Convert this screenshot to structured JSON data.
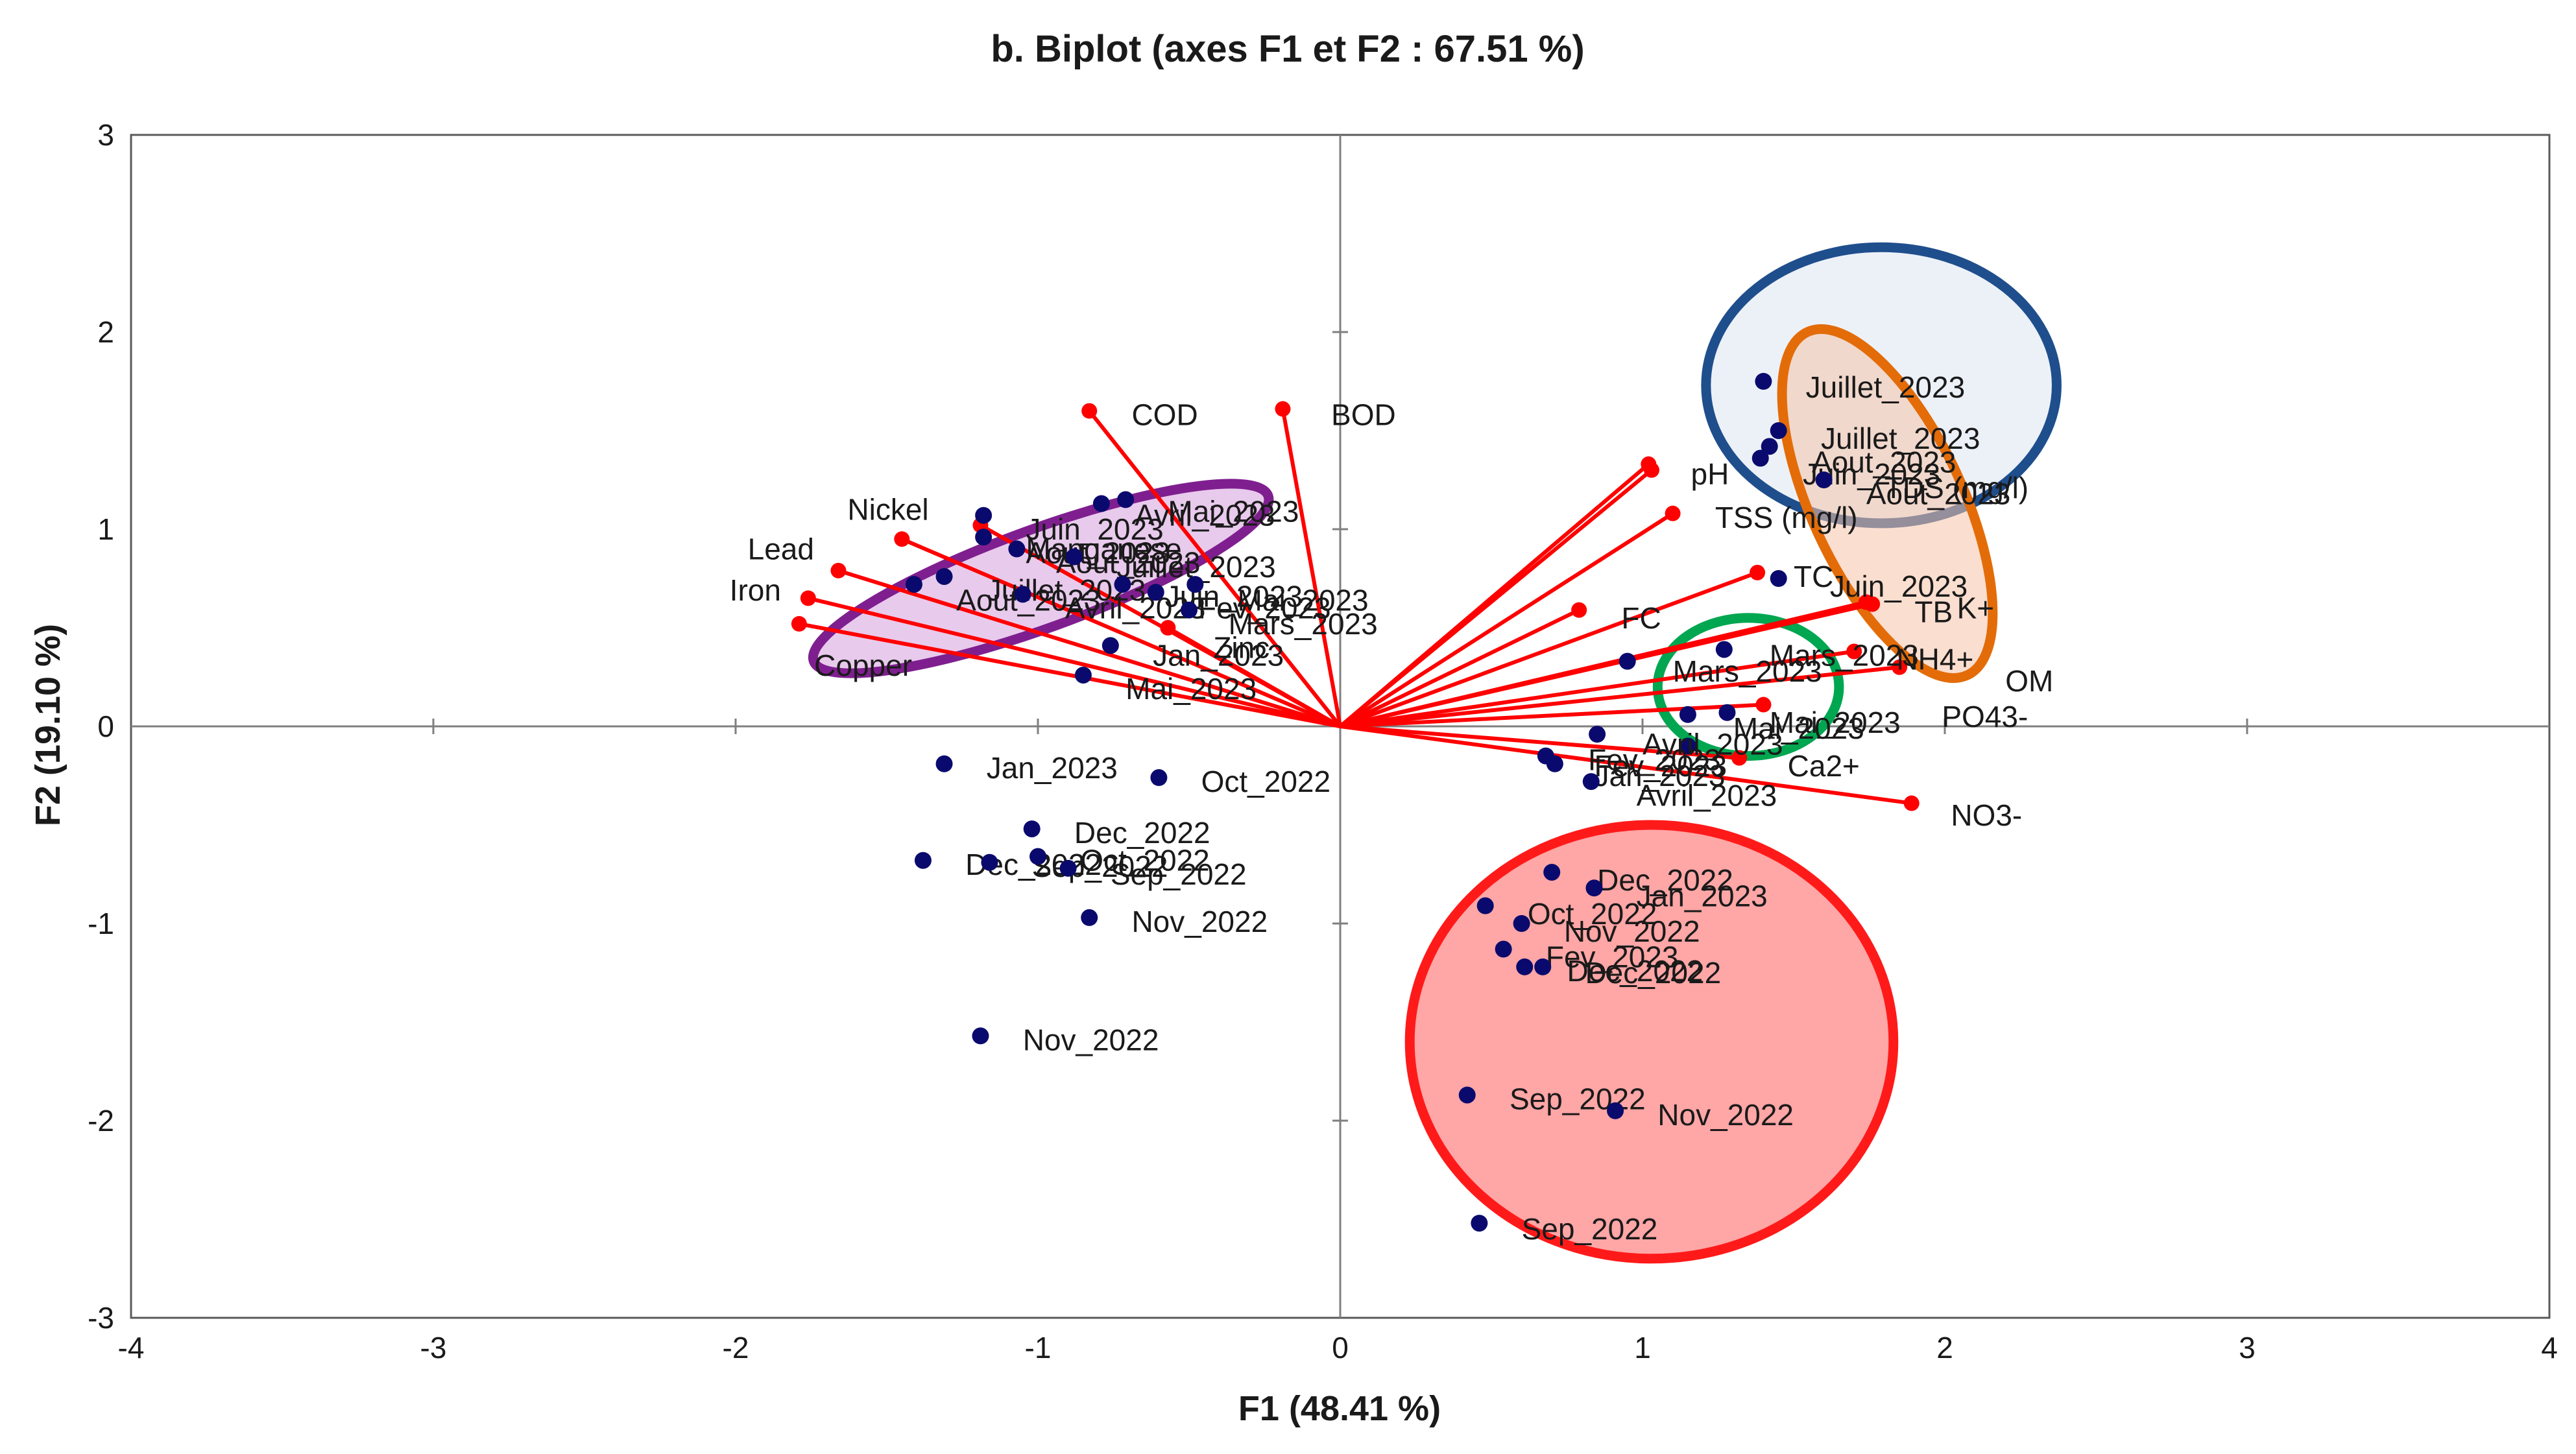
{
  "chart_data": {
    "type": "scatter",
    "title": "b. Biplot (axes F1 et F2 : 67.51 %)",
    "xlabel": "F1 (48.41 %)",
    "ylabel": "F2 (19.10 %)",
    "xlim": [
      -4,
      4
    ],
    "ylim": [
      -3,
      3
    ],
    "xticks": [
      "-4",
      "-3",
      "-2",
      "-1",
      "0",
      "1",
      "2",
      "3",
      "4"
    ],
    "yticks": [
      "-3",
      "-2",
      "-1",
      "0",
      "1",
      "2",
      "3"
    ],
    "colors": {
      "observation": "#0a0a6e",
      "variable": "#ff0000",
      "axis": "#7f7f7f",
      "frame": "#5a5a5a"
    },
    "variables": [
      {
        "name": "COD",
        "x": -0.83,
        "y": 1.6
      },
      {
        "name": "BOD",
        "x": -0.19,
        "y": 1.61
      },
      {
        "name": "Nickel",
        "x": -1.45,
        "y": 0.95
      },
      {
        "name": "Manganese",
        "x": -1.19,
        "y": 1.02
      },
      {
        "name": "Lead",
        "x": -1.66,
        "y": 0.79
      },
      {
        "name": "Iron",
        "x": -1.76,
        "y": 0.65
      },
      {
        "name": "Copper",
        "x": -1.79,
        "y": 0.52
      },
      {
        "name": "Zinc",
        "x": -0.57,
        "y": 0.5
      },
      {
        "name": "pH",
        "x": 1.03,
        "y": 1.3
      },
      {
        "name": "TDS (mg/l)",
        "x": 1.02,
        "y": 1.33
      },
      {
        "name": "TSS (mg/l)",
        "x": 1.1,
        "y": 1.08
      },
      {
        "name": "FC",
        "x": 0.79,
        "y": 0.59
      },
      {
        "name": "TC",
        "x": 1.38,
        "y": 0.78
      },
      {
        "name": "TB",
        "x": 1.76,
        "y": 0.62
      },
      {
        "name": "K+",
        "x": 1.74,
        "y": 0.63
      },
      {
        "name": "NH4+",
        "x": 1.7,
        "y": 0.38
      },
      {
        "name": "OM",
        "x": 1.85,
        "y": 0.3
      },
      {
        "name": "PO43-",
        "x": 1.4,
        "y": 0.11
      },
      {
        "name": "Ca2+",
        "x": 1.32,
        "y": -0.16
      },
      {
        "name": "NO3-",
        "x": 1.89,
        "y": -0.39
      }
    ],
    "variable_labels": [
      {
        "name": "COD",
        "lx": -0.69,
        "ly": 1.58
      },
      {
        "name": "BOD",
        "lx": -0.03,
        "ly": 1.58
      },
      {
        "name": "Nickel",
        "lx": -1.63,
        "ly": 1.1
      },
      {
        "name": "Manganese",
        "lx": -1.04,
        "ly": 0.9
      },
      {
        "name": "Lead",
        "lx": -1.96,
        "ly": 0.9
      },
      {
        "name": "Iron",
        "lx": -2.02,
        "ly": 0.69
      },
      {
        "name": "Copper",
        "lx": -1.74,
        "ly": 0.31
      },
      {
        "name": "Zinc",
        "lx": -0.42,
        "ly": 0.4
      },
      {
        "name": "pH",
        "lx": 1.16,
        "ly": 1.28
      },
      {
        "name": "TDS (mg/l)",
        "lx": 1.8,
        "ly": 1.21
      },
      {
        "name": "TSS (mg/l)",
        "lx": 1.24,
        "ly": 1.06
      },
      {
        "name": "FC",
        "lx": 0.93,
        "ly": 0.55
      },
      {
        "name": "TC",
        "lx": 1.5,
        "ly": 0.76
      },
      {
        "name": "TB",
        "lx": 1.9,
        "ly": 0.58
      },
      {
        "name": "K+",
        "lx": 2.04,
        "ly": 0.6
      },
      {
        "name": "NH4+",
        "lx": 1.84,
        "ly": 0.34
      },
      {
        "name": "OM",
        "lx": 2.2,
        "ly": 0.23
      },
      {
        "name": "PO43-",
        "lx": 1.99,
        "ly": 0.05
      },
      {
        "name": "Ca2+",
        "lx": 1.48,
        "ly": -0.2
      },
      {
        "name": "NO3-",
        "lx": 2.02,
        "ly": -0.45
      }
    ],
    "observations": [
      {
        "label": "Juillet_2023",
        "x": 1.4,
        "y": 1.75,
        "lx": 1.54,
        "ly": 1.72
      },
      {
        "label": "Juillet_2023",
        "x": 1.45,
        "y": 1.5,
        "lx": 1.59,
        "ly": 1.46
      },
      {
        "label": "Aout_2023",
        "x": 1.42,
        "y": 1.42,
        "lx": 1.56,
        "ly": 1.34
      },
      {
        "label": "Juin_2023",
        "x": 1.39,
        "y": 1.36,
        "lx": 1.53,
        "ly": 1.28
      },
      {
        "label": "Aout_2023",
        "x": 1.6,
        "y": 1.25,
        "lx": 1.74,
        "ly": 1.18
      },
      {
        "label": "Juin_2023",
        "x": 1.45,
        "y": 0.75,
        "lx": 1.62,
        "ly": 0.71
      },
      {
        "label": "Mars_2023",
        "x": 1.27,
        "y": 0.39,
        "lx": 1.42,
        "ly": 0.36
      },
      {
        "label": "Mars_2023",
        "x": 0.95,
        "y": 0.33,
        "lx": 1.1,
        "ly": 0.28
      },
      {
        "label": "Mai_2023",
        "x": 1.28,
        "y": 0.07,
        "lx": 1.42,
        "ly": 0.02
      },
      {
        "label": "Mai_2023",
        "x": 1.15,
        "y": 0.06,
        "lx": 1.3,
        "ly": -0.01
      },
      {
        "label": "Avril_2023",
        "x": 1.15,
        "y": -0.1,
        "lx": 1.0,
        "ly": -0.09
      },
      {
        "label": "Fev_2023",
        "x": 0.85,
        "y": -0.04,
        "lx": 0.82,
        "ly": -0.17
      },
      {
        "label": "Fev_2023",
        "x": 0.68,
        "y": -0.15,
        "lx": 0.84,
        "ly": -0.2
      },
      {
        "label": "Jan_2023",
        "x": 0.71,
        "y": -0.19,
        "lx": 0.84,
        "ly": -0.25
      },
      {
        "label": "Avril_2023",
        "x": 0.83,
        "y": -0.28,
        "lx": 0.98,
        "ly": -0.35
      },
      {
        "label": "Mai_2023",
        "x": -0.71,
        "y": 1.15,
        "lx": -0.57,
        "ly": 1.09
      },
      {
        "label": "Avril_2023",
        "x": -0.79,
        "y": 1.13,
        "lx": -0.68,
        "ly": 1.07
      },
      {
        "label": "Juin_2023",
        "x": -1.18,
        "y": 1.07,
        "lx": -1.04,
        "ly": 1.0
      },
      {
        "label": "Aout_2023",
        "x": -1.18,
        "y": 0.96,
        "lx": -1.04,
        "ly": 0.88
      },
      {
        "label": "Aout_2023",
        "x": -1.07,
        "y": 0.9,
        "lx": -0.94,
        "ly": 0.83
      },
      {
        "label": "Juillet_2023",
        "x": -0.88,
        "y": 0.86,
        "lx": -0.74,
        "ly": 0.81
      },
      {
        "label": "Juillet_2023",
        "x": -1.31,
        "y": 0.76,
        "lx": -1.17,
        "ly": 0.69
      },
      {
        "label": "Aout_2023",
        "x": -1.41,
        "y": 0.72,
        "lx": -1.27,
        "ly": 0.64
      },
      {
        "label": "Juin_2023",
        "x": -0.72,
        "y": 0.72,
        "lx": -0.58,
        "ly": 0.66
      },
      {
        "label": "Mai_2023",
        "x": -0.48,
        "y": 0.72,
        "lx": -0.34,
        "ly": 0.64
      },
      {
        "label": "Avril_2023",
        "x": -1.05,
        "y": 0.67,
        "lx": -0.91,
        "ly": 0.6
      },
      {
        "label": "Fev_2023",
        "x": -0.61,
        "y": 0.68,
        "lx": -0.47,
        "ly": 0.6
      },
      {
        "label": "Mars_2023",
        "x": -0.5,
        "y": 0.59,
        "lx": -0.37,
        "ly": 0.52
      },
      {
        "label": "Jan_2023",
        "x": -0.76,
        "y": 0.41,
        "lx": -0.62,
        "ly": 0.36
      },
      {
        "label": "Mai_2023",
        "x": -0.85,
        "y": 0.26,
        "lx": -0.71,
        "ly": 0.19
      },
      {
        "label": "Jan_2023",
        "x": -1.31,
        "y": -0.19,
        "lx": -1.17,
        "ly": -0.21
      },
      {
        "label": "Oct_2022",
        "x": -0.6,
        "y": -0.26,
        "lx": -0.46,
        "ly": -0.28
      },
      {
        "label": "Dec_2022",
        "x": -1.02,
        "y": -0.52,
        "lx": -0.88,
        "ly": -0.54
      },
      {
        "label": "Dec_2022",
        "x": -1.38,
        "y": -0.68,
        "lx": -1.24,
        "ly": -0.7
      },
      {
        "label": "Sep_2022",
        "x": -1.16,
        "y": -0.69,
        "lx": -1.02,
        "ly": -0.71
      },
      {
        "label": "Oct_2022",
        "x": -1.0,
        "y": -0.66,
        "lx": -0.86,
        "ly": -0.68
      },
      {
        "label": "Sep_2022",
        "x": -0.9,
        "y": -0.72,
        "lx": -0.76,
        "ly": -0.75
      },
      {
        "label": "Nov_2022",
        "x": -0.83,
        "y": -0.97,
        "lx": -0.69,
        "ly": -0.99
      },
      {
        "label": "Nov_2022",
        "x": -1.19,
        "y": -1.57,
        "lx": -1.05,
        "ly": -1.59
      },
      {
        "label": "Dec_2022",
        "x": 0.7,
        "y": -0.74,
        "lx": 0.85,
        "ly": -0.78
      },
      {
        "label": "Jan_2023",
        "x": 0.84,
        "y": -0.82,
        "lx": 0.98,
        "ly": -0.86
      },
      {
        "label": "Oct_2022",
        "x": 0.48,
        "y": -0.91,
        "lx": 0.62,
        "ly": -0.95
      },
      {
        "label": "Nov_2022",
        "x": 0.6,
        "y": -1.0,
        "lx": 0.74,
        "ly": -1.04
      },
      {
        "label": "Fev_2023",
        "x": 0.54,
        "y": -1.13,
        "lx": 0.68,
        "ly": -1.17
      },
      {
        "label": "Dec_2022",
        "x": 0.61,
        "y": -1.22,
        "lx": 0.75,
        "ly": -1.24
      },
      {
        "label": "Dec_2022",
        "x": 0.67,
        "y": -1.22,
        "lx": 0.81,
        "ly": -1.25
      },
      {
        "label": "Sep_2022",
        "x": 0.42,
        "y": -1.87,
        "lx": 0.56,
        "ly": -1.89
      },
      {
        "label": "Nov_2022",
        "x": 0.91,
        "y": -1.95,
        "lx": 1.05,
        "ly": -1.97
      },
      {
        "label": "Sep_2022",
        "x": 0.46,
        "y": -2.52,
        "lx": 0.6,
        "ly": -2.55
      }
    ],
    "ellipses": [
      {
        "name": "blue-cluster",
        "cx": 1.79,
        "cy": 1.73,
        "rx": 0.58,
        "ry": 0.7,
        "angle": 0,
        "stroke": "#1f4e8c",
        "fill": "#dde6f2",
        "opacity": 0.55
      },
      {
        "name": "orange-cluster",
        "cx": 1.81,
        "cy": 1.13,
        "rx": 0.25,
        "ry": 0.96,
        "angle": -25,
        "stroke": "#e36c09",
        "fill": "#f6c3a8",
        "opacity": 0.55
      },
      {
        "name": "purple-cluster",
        "cx": -0.99,
        "cy": 0.75,
        "rx": 0.8,
        "ry": 0.25,
        "angle": -20,
        "stroke": "#7f1f8f",
        "fill": "#d9a6e0",
        "opacity": 0.6
      },
      {
        "name": "green-cluster",
        "cx": 1.35,
        "cy": 0.2,
        "rx": 0.3,
        "ry": 0.35,
        "angle": 0,
        "stroke": "#00a650",
        "fill": "#ffffff",
        "opacity": 0.25
      },
      {
        "name": "red-cluster",
        "cx": 1.03,
        "cy": -1.6,
        "rx": 0.8,
        "ry": 1.1,
        "angle": 0,
        "stroke": "#ff1a1a",
        "fill": "#ff6b6b",
        "opacity": 0.6
      }
    ]
  }
}
